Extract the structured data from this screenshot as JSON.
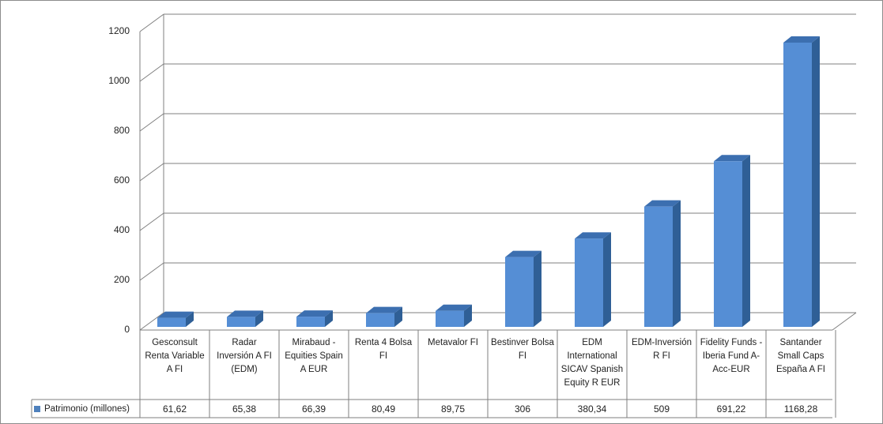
{
  "chart_data": {
    "type": "bar",
    "categories": [
      "Gesconsult Renta Variable A FI",
      "Radar Inversión A FI (EDM)",
      "Mirabaud - Equities Spain A EUR",
      "Renta 4 Bolsa FI",
      "Metavalor FI",
      "Bestinver Bolsa FI",
      "EDM International SICAV Spanish Equity R EUR",
      "EDM-Inversión R FI",
      "Fidelity Funds - Iberia Fund A-Acc-EUR",
      "Santander Small Caps España A FI"
    ],
    "series": [
      {
        "name": "Patrimonio (millones)",
        "values": [
          61.62,
          65.38,
          66.39,
          80.49,
          89.75,
          306,
          380.34,
          509,
          691.22,
          1168.28
        ],
        "labels": [
          "61,62",
          "65,38",
          "66,39",
          "80,49",
          "89,75",
          "306",
          "380,34",
          "509",
          "691,22",
          "1168,28"
        ]
      }
    ],
    "ylim": [
      0,
      1200
    ],
    "yticks": [
      "0",
      "200",
      "400",
      "600",
      "800",
      "1000",
      "1200"
    ],
    "grid": true,
    "legend": "data-table-left",
    "colors": {
      "bar_front": "#558ed5",
      "bar_side": "#2f5f96",
      "bar_top": "#3c6fb0",
      "grid": "#7f7f7f"
    }
  }
}
